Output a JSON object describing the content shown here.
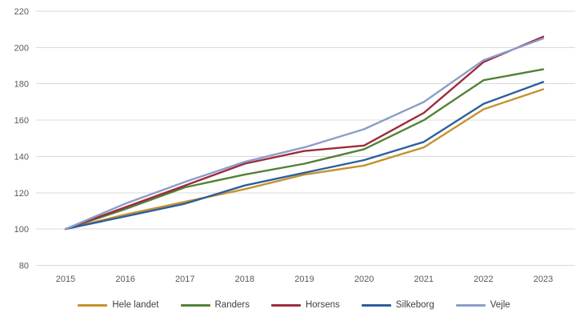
{
  "chart_data": {
    "type": "line",
    "title": "",
    "xlabel": "",
    "ylabel": "",
    "x": [
      "2015",
      "2016",
      "2017",
      "2018",
      "2019",
      "2020",
      "2021",
      "2022",
      "2023"
    ],
    "series": [
      {
        "name": "Hele landet",
        "color": "#C5922D",
        "values": [
          100,
          108,
          115,
          122,
          130,
          135,
          145,
          166,
          177
        ]
      },
      {
        "name": "Randers",
        "color": "#538135",
        "values": [
          100,
          111,
          123,
          130,
          136,
          144,
          160,
          182,
          188
        ]
      },
      {
        "name": "Horsens",
        "color": "#9E2B3C",
        "values": [
          100,
          112,
          124,
          136,
          143,
          146,
          164,
          192,
          206
        ]
      },
      {
        "name": "Silkeborg",
        "color": "#2D5E9E",
        "values": [
          100,
          107,
          114,
          124,
          131,
          138,
          148,
          169,
          181
        ]
      },
      {
        "name": "Vejle",
        "color": "#8B9DC9",
        "values": [
          100,
          114,
          126,
          137,
          145,
          155,
          170,
          193,
          205
        ]
      }
    ],
    "ylim": [
      80,
      220
    ],
    "ytick_step": 20,
    "yticks": [
      80,
      100,
      120,
      140,
      160,
      180,
      200,
      220
    ],
    "grid": true,
    "legend_position": "bottom",
    "axis_label_color": "#595959",
    "legend_label_color": "#404040",
    "gridline_color": "#D9D9D9",
    "background_color": "#FFFFFF"
  }
}
